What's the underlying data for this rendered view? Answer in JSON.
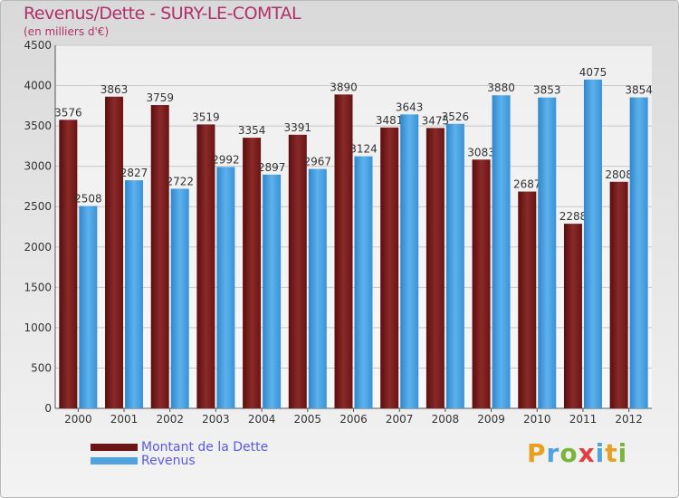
{
  "title": "Revenus/Dette - SURY-LE-COMTAL",
  "subtitle": "(en milliers d'€)",
  "logo": "Proxiti",
  "colors": {
    "dette": "#7a1a1a",
    "revenus": "#4fa3e0",
    "title": "#b0306a",
    "legend_text": "#5a5ae6"
  },
  "chart_data": {
    "type": "bar",
    "title": "Revenus/Dette - SURY-LE-COMTAL",
    "ylabel": "(en milliers d'€)",
    "xlabel": "",
    "ylim": [
      0,
      4500
    ],
    "yticks": [
      0,
      500,
      1000,
      1500,
      2000,
      2500,
      3000,
      3500,
      4000,
      4500
    ],
    "grid": true,
    "legend": "bottom-left",
    "categories": [
      "2000",
      "2001",
      "2002",
      "2003",
      "2004",
      "2005",
      "2006",
      "2007",
      "2008",
      "2009",
      "2010",
      "2011",
      "2012"
    ],
    "series": [
      {
        "name": "Montant de la Dette",
        "values": [
          3576,
          3863,
          3759,
          3519,
          3354,
          3391,
          3890,
          3481,
          3475,
          3083,
          2687,
          2288,
          2808
        ]
      },
      {
        "name": "Revenus",
        "values": [
          2508,
          2827,
          2722,
          2992,
          2897,
          2967,
          3124,
          3643,
          3526,
          3880,
          3853,
          4075,
          3854
        ]
      }
    ]
  }
}
